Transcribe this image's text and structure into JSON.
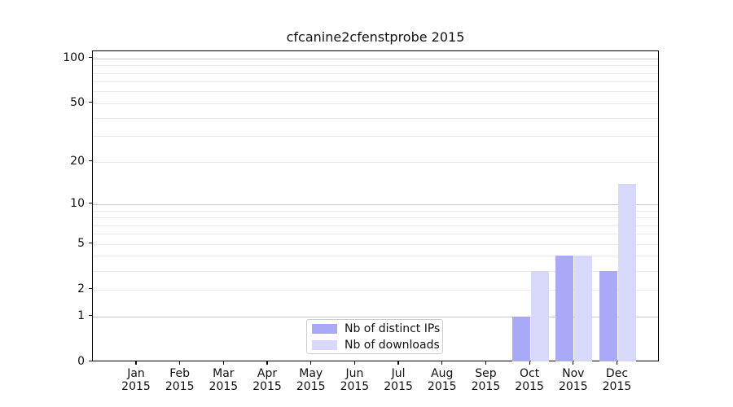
{
  "chart_data": {
    "type": "bar",
    "title": "cfcanine2cfenstprobe 2015",
    "categories": [
      "Jan",
      "Feb",
      "Mar",
      "Apr",
      "May",
      "Jun",
      "Jul",
      "Aug",
      "Sep",
      "Oct",
      "Nov",
      "Dec"
    ],
    "category_year": "2015",
    "series": [
      {
        "name": "Nb of distinct IPs",
        "color": "#a9a9f7",
        "values": [
          0,
          0,
          0,
          0,
          0,
          0,
          0,
          0,
          0,
          1,
          4,
          3
        ]
      },
      {
        "name": "Nb of downloads",
        "color": "#d8d8fa",
        "values": [
          0,
          0,
          0,
          0,
          0,
          0,
          0,
          0,
          0,
          3,
          4,
          14
        ]
      }
    ],
    "xlabel": "",
    "ylabel": "",
    "yscale": "log1p",
    "ylim": [
      0,
      111.5
    ],
    "yticks": [
      0,
      1,
      2,
      5,
      10,
      20,
      50,
      100
    ],
    "major_gridlines": [
      1,
      10,
      100
    ],
    "minor_gridlines": [
      2,
      3,
      4,
      5,
      6,
      7,
      8,
      9,
      20,
      30,
      40,
      50,
      60,
      70,
      80,
      90
    ],
    "grid": true,
    "legend_position": "lower center",
    "colors": {
      "distinct_ips": "#a9a9f7",
      "downloads": "#d8d8fa",
      "major_grid": "#c6c6c6",
      "minor_grid": "#eaeaea",
      "spine": "#000000"
    }
  }
}
